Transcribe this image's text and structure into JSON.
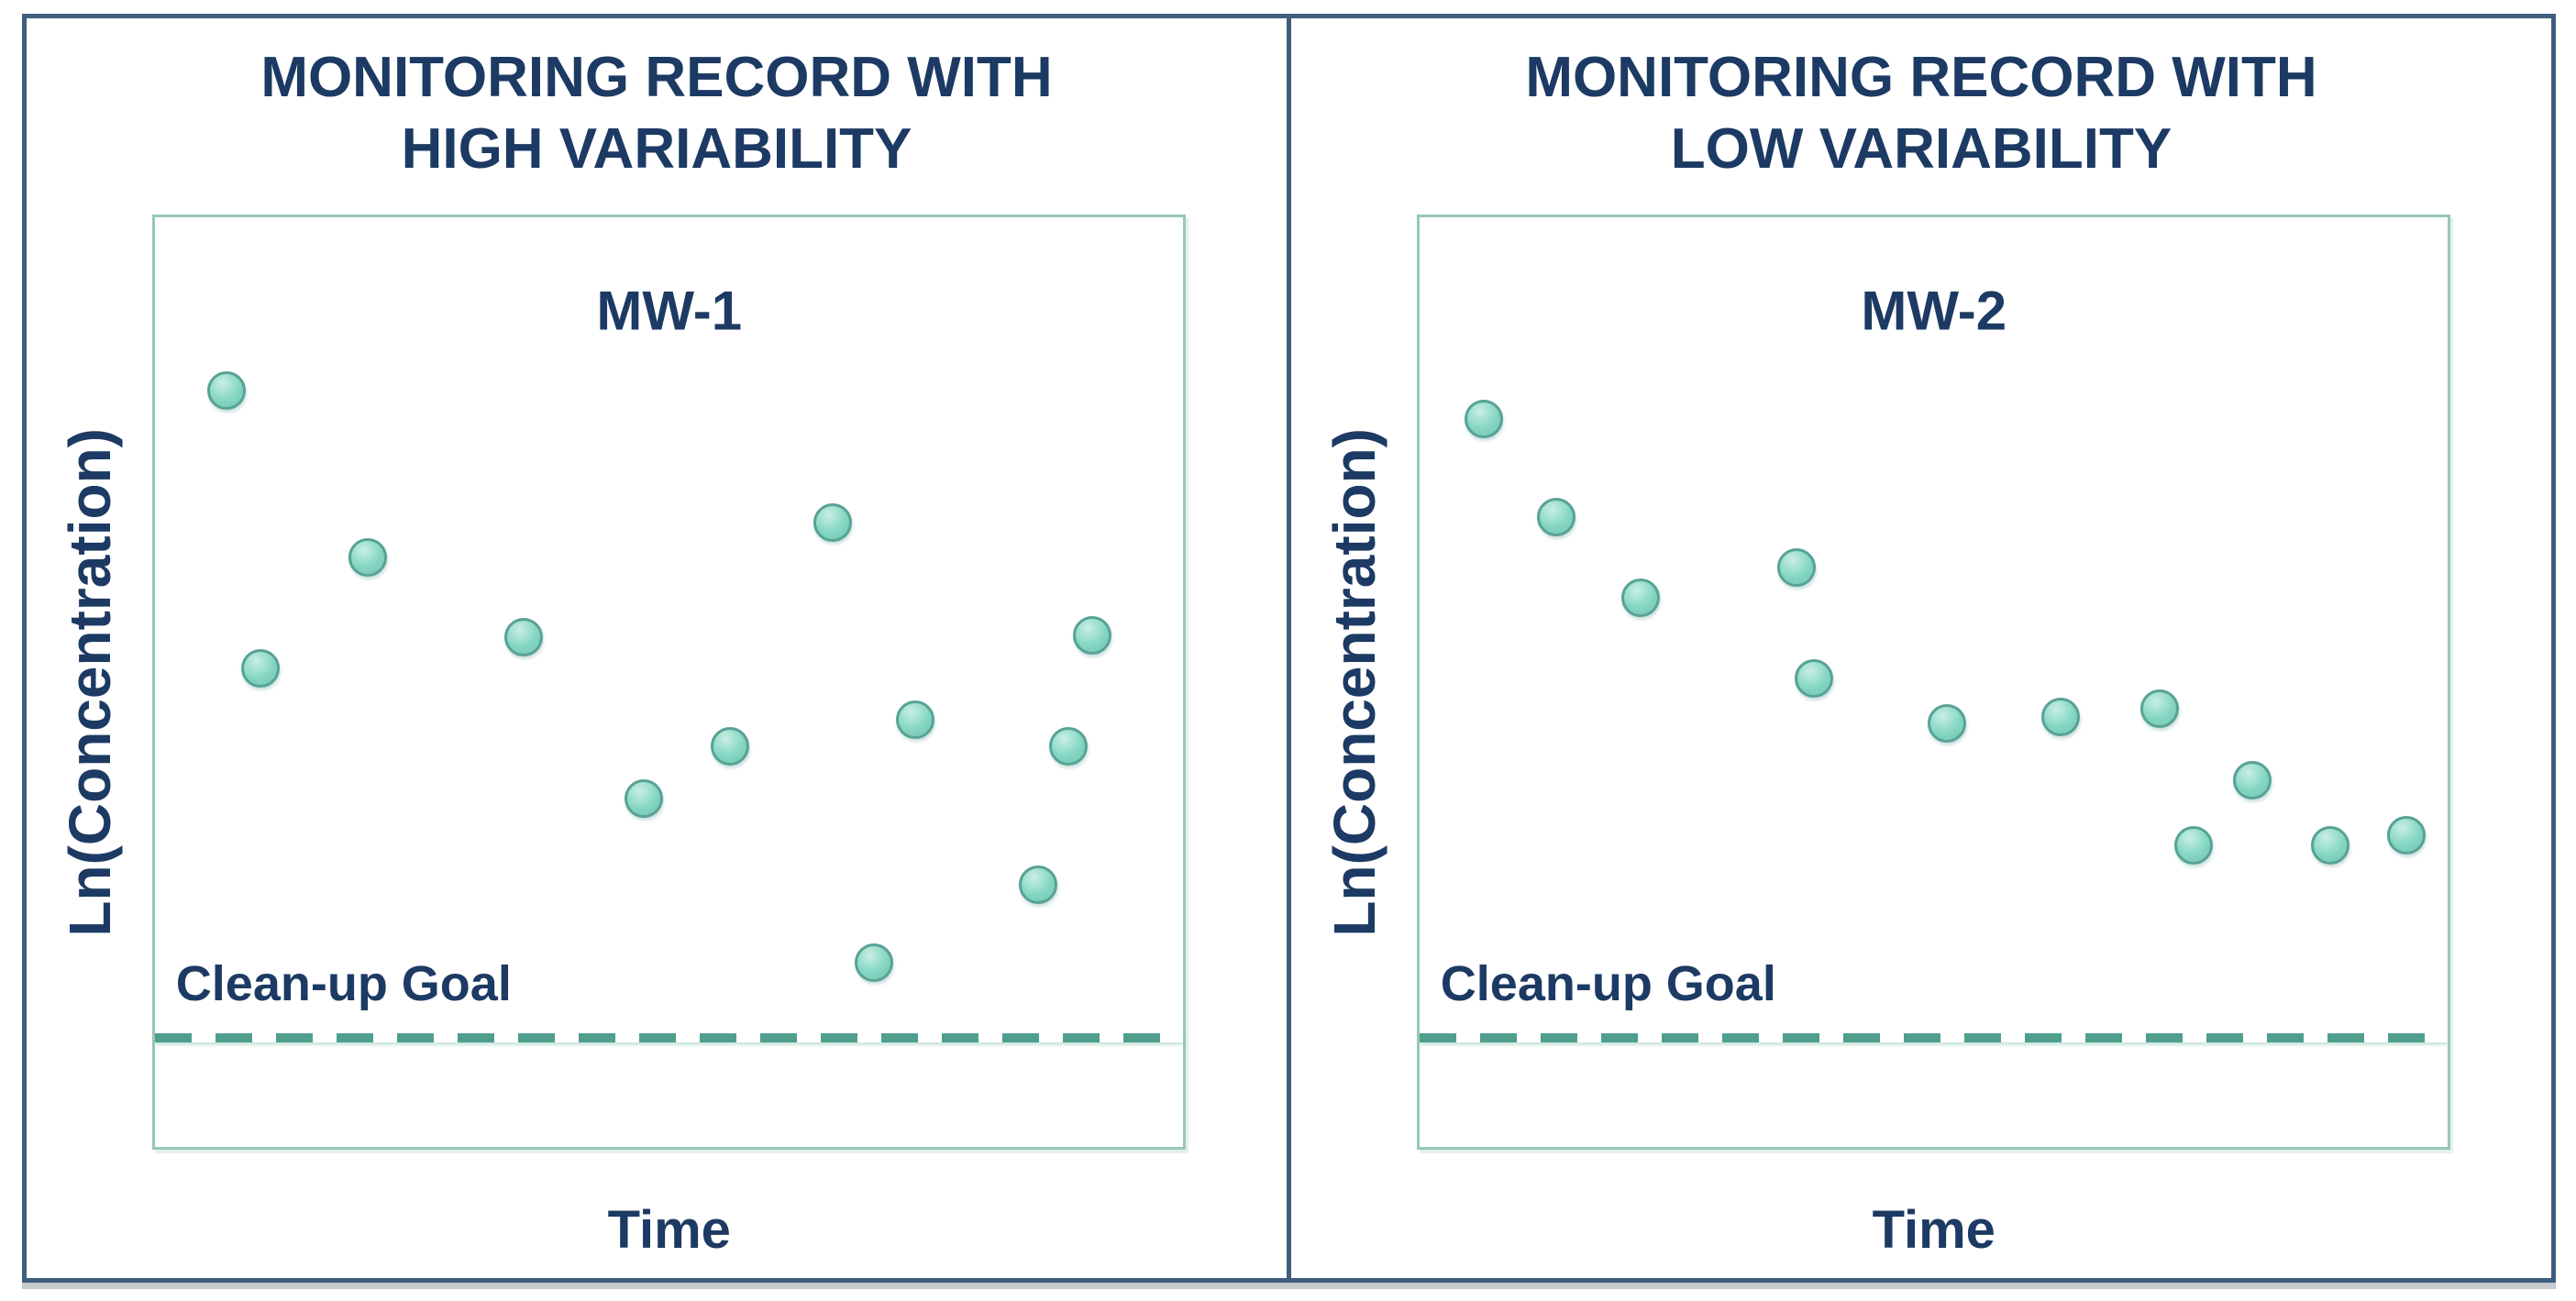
{
  "figure": {
    "panels": [
      {
        "title_line1": "MONITORING RECORD WITH",
        "title_line2": "HIGH VARIABILITY",
        "well_label": "MW-1",
        "y_axis_label": "Ln(Concentration)",
        "x_axis_label": "Time",
        "cleanup_label": "Clean-up Goal"
      },
      {
        "title_line1": "MONITORING RECORD WITH",
        "title_line2": "LOW VARIABILITY",
        "well_label": "MW-2",
        "y_axis_label": "Ln(Concentration)",
        "x_axis_label": "Time",
        "cleanup_label": "Clean-up Goal"
      }
    ]
  },
  "chart_data": [
    {
      "type": "scatter",
      "title": "MONITORING RECORD WITH HIGH VARIABILITY",
      "series_label": "MW-1",
      "xlabel": "Time",
      "ylabel": "Ln(Concentration)",
      "grid": false,
      "axes_unlabeled": true,
      "points": [
        {
          "x_pct": 6.9,
          "y_pct": 18.6
        },
        {
          "x_pct": 10.2,
          "y_pct": 48.5
        },
        {
          "x_pct": 20.7,
          "y_pct": 36.6
        },
        {
          "x_pct": 35.8,
          "y_pct": 45.2
        },
        {
          "x_pct": 47.5,
          "y_pct": 62.5
        },
        {
          "x_pct": 55.9,
          "y_pct": 56.9
        },
        {
          "x_pct": 65.9,
          "y_pct": 32.8
        },
        {
          "x_pct": 69.9,
          "y_pct": 80.2
        },
        {
          "x_pct": 73.9,
          "y_pct": 54.0
        },
        {
          "x_pct": 85.9,
          "y_pct": 71.8
        },
        {
          "x_pct": 88.8,
          "y_pct": 56.9
        },
        {
          "x_pct": 91.2,
          "y_pct": 45.0
        }
      ],
      "reference_line": {
        "label": "Clean-up Goal",
        "y_pct": 87.8,
        "style": "dashed"
      }
    },
    {
      "type": "scatter",
      "title": "MONITORING RECORD WITH LOW VARIABILITY",
      "series_label": "MW-2",
      "xlabel": "Time",
      "ylabel": "Ln(Concentration)",
      "grid": false,
      "axes_unlabeled": true,
      "points": [
        {
          "x_pct": 6.2,
          "y_pct": 21.7
        },
        {
          "x_pct": 13.3,
          "y_pct": 32.2
        },
        {
          "x_pct": 21.5,
          "y_pct": 40.9
        },
        {
          "x_pct": 36.6,
          "y_pct": 37.7
        },
        {
          "x_pct": 38.3,
          "y_pct": 49.6
        },
        {
          "x_pct": 51.3,
          "y_pct": 54.4
        },
        {
          "x_pct": 62.3,
          "y_pct": 53.7
        },
        {
          "x_pct": 72.0,
          "y_pct": 52.9
        },
        {
          "x_pct": 75.3,
          "y_pct": 67.6
        },
        {
          "x_pct": 81.0,
          "y_pct": 60.5
        },
        {
          "x_pct": 88.6,
          "y_pct": 67.6
        },
        {
          "x_pct": 96.0,
          "y_pct": 66.5
        }
      ],
      "reference_line": {
        "label": "Clean-up Goal",
        "y_pct": 87.8,
        "style": "dashed"
      }
    }
  ],
  "colors": {
    "navy_text": "#1c3a63",
    "frame_border": "#3f5e7e",
    "box_border": "#97c8b4",
    "goal_line": "#4f9e8e",
    "point_fill": "#84d6c3",
    "point_fill_dark": "#74c4b0",
    "point_highlight": "#c9efe3",
    "point_border": "#58a296"
  }
}
